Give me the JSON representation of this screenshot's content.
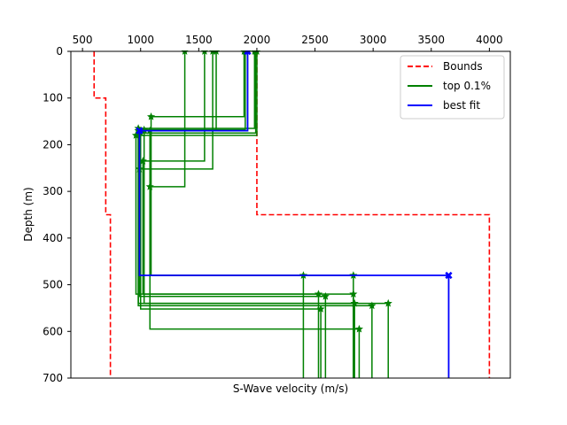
{
  "chart_data": {
    "type": "line",
    "title": "",
    "xlabel": "S-Wave velocity (m/s)",
    "ylabel": "Depth (m)",
    "xlim": [
      400,
      4180
    ],
    "ylim": [
      0,
      700
    ],
    "y_inverted": true,
    "x_axis_position": "top",
    "xticks": [
      500,
      1000,
      1500,
      2000,
      2500,
      3000,
      3500,
      4000
    ],
    "yticks": [
      0,
      100,
      200,
      300,
      400,
      500,
      600,
      700
    ],
    "grid": false,
    "legend": {
      "location": "top-right",
      "entries": [
        {
          "label": "Bounds",
          "color": "#ff0000",
          "style": "dashed"
        },
        {
          "label": "top 0.1%",
          "color": "#008000",
          "style": "solid"
        },
        {
          "label": "best fit",
          "color": "#0000ff",
          "style": "solid"
        }
      ]
    },
    "bounds": {
      "name": "Bounds",
      "color": "#ff0000",
      "lower": [
        {
          "x": 600,
          "y": 0
        },
        {
          "x": 600,
          "y": 100
        },
        {
          "x": 700,
          "y": 100
        },
        {
          "x": 700,
          "y": 350
        },
        {
          "x": 740,
          "y": 350
        },
        {
          "x": 740,
          "y": 700
        }
      ],
      "upper": [
        {
          "x": 2000,
          "y": 0
        },
        {
          "x": 2000,
          "y": 350
        },
        {
          "x": 4000,
          "y": 350
        },
        {
          "x": 4000,
          "y": 700
        }
      ]
    },
    "top_models": {
      "name": "top 0.1%",
      "color": "#008000",
      "profiles": [
        {
          "v1": 1380,
          "h1": 290,
          "v2": 1080,
          "h2": 480,
          "v3": 2400
        },
        {
          "v1": 1550,
          "h1": 235,
          "v2": 1020,
          "h2": 520,
          "v3": 2530
        },
        {
          "v1": 1620,
          "h1": 252,
          "v2": 990,
          "h2": 525,
          "v3": 2590
        },
        {
          "v1": 1650,
          "h1": 170,
          "v2": 980,
          "h2": 540,
          "v3": 3130
        },
        {
          "v1": 1890,
          "h1": 140,
          "v2": 1090,
          "h2": 480,
          "v3": 2830
        },
        {
          "v1": 1980,
          "h1": 165,
          "v2": 980,
          "h2": 545,
          "v3": 2990
        },
        {
          "v1": 2000,
          "h1": 180,
          "v2": 960,
          "h2": 520,
          "v3": 2830
        },
        {
          "v1": 1990,
          "h1": 175,
          "v2": 1000,
          "h2": 552,
          "v3": 2550
        },
        {
          "v1": 1900,
          "h1": 168,
          "v2": 1030,
          "h2": 540,
          "v3": 2840
        },
        {
          "v1": 1920,
          "h1": 170,
          "v2": 1080,
          "h2": 595,
          "v3": 2880
        }
      ]
    },
    "best_fit": {
      "name": "best fit",
      "color": "#0000ff",
      "profile": {
        "v1": 1920,
        "h1": 170,
        "v2": 990,
        "h2": 480,
        "v3": 3650
      }
    }
  }
}
